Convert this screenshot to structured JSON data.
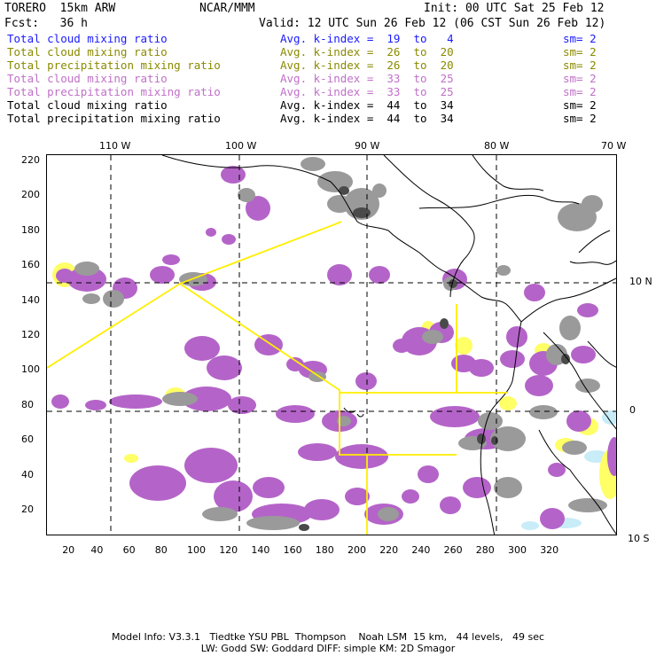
{
  "header": {
    "model": "TORERO  15km ARW",
    "org": "NCAR/MMM",
    "init": "Init: 00 UTC Sat 25 Feb 12",
    "fcst": "Fcst:   36 h",
    "valid": "Valid: 12 UTC Sun 26 Feb 12 (06 CST Sun 26 Feb 12)"
  },
  "legend": [
    {
      "name": "Total cloud mixing ratio",
      "avg": "Avg. k-index =  19  to   4",
      "sm": "sm= 2",
      "color": "#1a1aff"
    },
    {
      "name": "Total cloud mixing ratio",
      "avg": "Avg. k-index =  26  to  20",
      "sm": "sm= 2",
      "color": "#8a8a00"
    },
    {
      "name": "Total precipitation mixing ratio",
      "avg": "Avg. k-index =  26  to  20",
      "sm": "sm= 2",
      "color": "#8a8a00"
    },
    {
      "name": "Total cloud mixing ratio",
      "avg": "Avg. k-index =  33  to  25",
      "sm": "sm= 2",
      "color": "#c070c8"
    },
    {
      "name": "Total precipitation mixing ratio",
      "avg": "Avg. k-index =  33  to  25",
      "sm": "sm= 2",
      "color": "#c070c8"
    },
    {
      "name": "Total cloud mixing ratio",
      "avg": "Avg. k-index =  44  to  34",
      "sm": "sm= 2",
      "color": "#000000"
    },
    {
      "name": "Total precipitation mixing ratio",
      "avg": "Avg. k-index =  44  to  34",
      "sm": "sm= 2",
      "color": "#000000"
    }
  ],
  "map": {
    "lon_labels": [
      "110 W",
      "100 W",
      "90 W",
      "80 W",
      "70 W"
    ],
    "lat_labels": [
      "10 N",
      "0",
      "10 S"
    ],
    "y_ticks": [
      "220",
      "200",
      "180",
      "160",
      "140",
      "120",
      "100",
      "80",
      "60",
      "40",
      "20"
    ],
    "x_ticks": [
      "20",
      "40",
      "60",
      "80",
      "100",
      "120",
      "140",
      "160",
      "180",
      "200",
      "220",
      "240",
      "260",
      "280",
      "300",
      "320"
    ],
    "colors": {
      "purple": "#b464c8",
      "gray": "#9a9a9a",
      "darkgray": "#555555",
      "yellow": "#ffff66",
      "lightblue": "#c8ecf8",
      "outline": "#ffee00"
    }
  },
  "footer": {
    "line1": "Model Info: V3.3.1   Tiedtke YSU PBL  Thompson    Noah LSM  15 km,   44 levels,   49 sec",
    "line2": "LW: Godd SW: Goddard DIFF: simple KM: 2D Smagor"
  }
}
